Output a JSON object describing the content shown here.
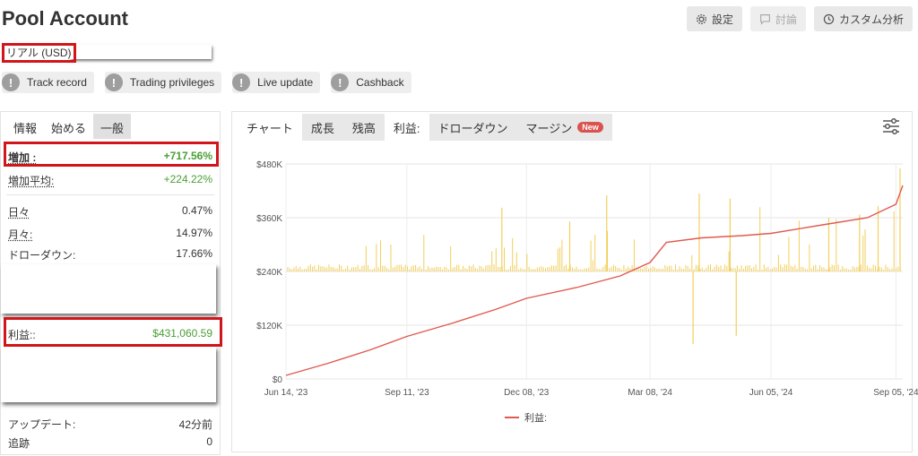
{
  "header": {
    "title": "Pool Account",
    "buttons": [
      {
        "label": "設定",
        "icon": "gear-icon"
      },
      {
        "label": "討論",
        "icon": "chat-icon"
      },
      {
        "label": "カスタム分析",
        "icon": "clock-icon"
      }
    ]
  },
  "account_type": "リアル (USD)",
  "badges": [
    "Track record",
    "Trading privileges",
    "Live update",
    "Cashback"
  ],
  "left_panel": {
    "tabs": [
      "情報",
      "始める",
      "一般"
    ],
    "active_tab": "一般",
    "gain_label": "増加 :",
    "gain_value": "+717.56%",
    "avg_gain_label": "増加平均:",
    "avg_gain_value": "+224.22%",
    "daily_label": "日々",
    "daily_value": "0.47%",
    "monthly_label": "月々:",
    "monthly_value": "14.97%",
    "drawdown_label": "ドローダウン:",
    "drawdown_value": "17.66%",
    "profit_label": "利益::",
    "profit_value": "$431,060.59",
    "updated_label": "アップデート:",
    "updated_value": "42分前",
    "tracking_label": "追跡",
    "tracking_value": "0"
  },
  "chart_panel": {
    "tabs": [
      "チャート",
      "成長",
      "残高",
      "利益:",
      "ドローダウン",
      "マージン"
    ],
    "active_tab": "利益:",
    "new_badge": "New",
    "settings_icon": "sliders-icon"
  },
  "colors": {
    "profit_green": "#4a9e34",
    "highlight_red": "#d0161b",
    "line_red": "#e05a50",
    "bar_yellow": "#f2cf5b"
  },
  "chart_data": {
    "type": "line",
    "title": "",
    "xlabel": "",
    "ylabel": "",
    "x_ticks": [
      "Jun 14, '23",
      "Sep 11, '23",
      "Dec 08, '23",
      "Mar 08, '24",
      "Jun 05, '24",
      "Sep 05, '24"
    ],
    "y_ticks": [
      "$0",
      "$120K",
      "$240K",
      "$360K",
      "$480K"
    ],
    "ylim": [
      0,
      480000
    ],
    "series": [
      {
        "name": "利益:",
        "x": [
          "2023-06-14",
          "2023-07-15",
          "2023-08-15",
          "2023-09-11",
          "2023-10-15",
          "2023-11-15",
          "2023-12-08",
          "2024-01-15",
          "2024-02-15",
          "2024-03-08",
          "2024-03-20",
          "2024-04-15",
          "2024-05-15",
          "2024-06-05",
          "2024-07-15",
          "2024-08-15",
          "2024-09-05",
          "2024-09-10"
        ],
        "values": [
          8000,
          35000,
          65000,
          95000,
          125000,
          155000,
          180000,
          205000,
          230000,
          260000,
          305000,
          315000,
          320000,
          325000,
          345000,
          360000,
          390000,
          432000
        ]
      }
    ],
    "daily_bars": {
      "baseline": 240000,
      "note": "yellow daily profit bars above/below $240K baseline"
    },
    "legend": "bottom-center",
    "grid": true
  }
}
